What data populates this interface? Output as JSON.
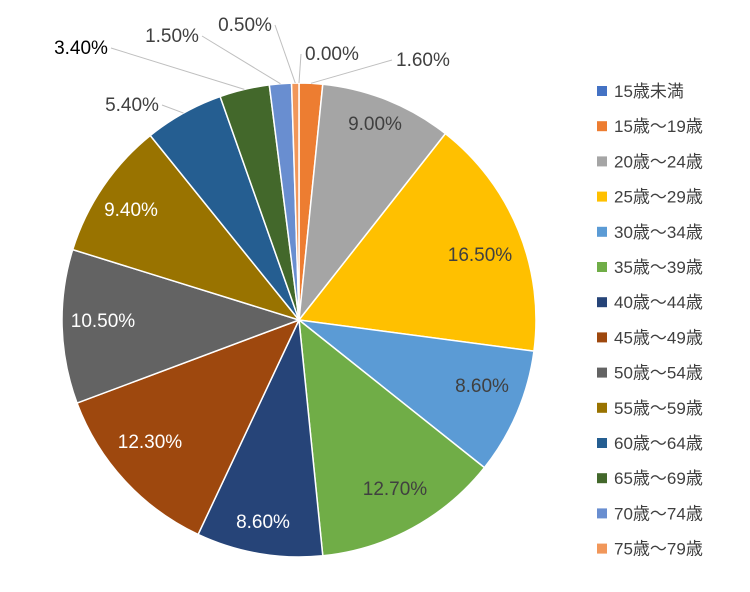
{
  "chart_data": {
    "type": "pie",
    "title": "",
    "legend_position": "right",
    "slices": [
      {
        "label": "15歳未満",
        "value": 0.0,
        "display": "0.00%",
        "color": "#4472C4"
      },
      {
        "label": "15歳〜19歳",
        "value": 1.6,
        "display": "1.60%",
        "color": "#ED7D31"
      },
      {
        "label": "20歳〜24歳",
        "value": 9.0,
        "display": "9.00%",
        "color": "#A5A5A5"
      },
      {
        "label": "25歳〜29歳",
        "value": 16.5,
        "display": "16.50%",
        "color": "#FFC000"
      },
      {
        "label": "30歳〜34歳",
        "value": 8.6,
        "display": "8.60%",
        "color": "#5B9BD5"
      },
      {
        "label": "35歳〜39歳",
        "value": 12.7,
        "display": "12.70%",
        "color": "#70AD47"
      },
      {
        "label": "40歳〜44歳",
        "value": 8.6,
        "display": "8.60%",
        "color": "#264478"
      },
      {
        "label": "45歳〜49歳",
        "value": 12.3,
        "display": "12.30%",
        "color": "#9E480E"
      },
      {
        "label": "50歳〜54歳",
        "value": 10.5,
        "display": "10.50%",
        "color": "#636363"
      },
      {
        "label": "55歳〜59歳",
        "value": 9.4,
        "display": "9.40%",
        "color": "#997300"
      },
      {
        "label": "60歳〜64歳",
        "value": 5.4,
        "display": "5.40%",
        "color": "#255E91"
      },
      {
        "label": "65歳〜69歳",
        "value": 3.4,
        "display": "3.40%",
        "color": "#43682B"
      },
      {
        "label": "70歳〜74歳",
        "value": 1.5,
        "display": "1.50%",
        "color": "#698ED0"
      },
      {
        "label": "75歳〜79歳",
        "value": 0.5,
        "display": "0.50%",
        "color": "#F1975A"
      }
    ]
  }
}
